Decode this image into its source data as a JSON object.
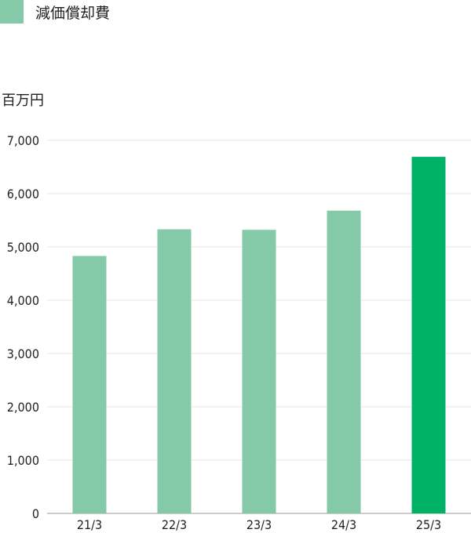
{
  "legend": {
    "label": "減価償却費",
    "color": "#84c9a8"
  },
  "chart_data": {
    "type": "bar",
    "unit_label": "百万円",
    "categories": [
      "21/3",
      "22/3",
      "23/3",
      "24/3",
      "25/3"
    ],
    "values": [
      4830,
      5330,
      5320,
      5680,
      6690
    ],
    "colors": [
      "#84c9a8",
      "#84c9a8",
      "#84c9a8",
      "#84c9a8",
      "#00b266"
    ],
    "yticks": [
      "0",
      "1,000",
      "2,000",
      "3,000",
      "4,000",
      "5,000",
      "6,000",
      "7,000"
    ],
    "ylim": [
      0,
      7000
    ],
    "grid": true
  }
}
